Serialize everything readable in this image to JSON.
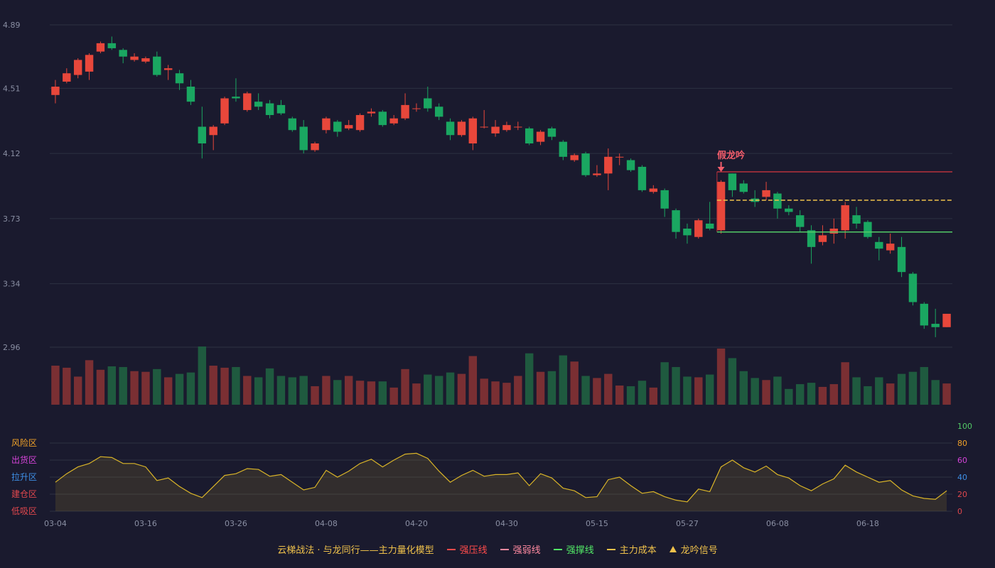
{
  "colors": {
    "background": "#1a1a2e",
    "grid": "#2d3142",
    "axis_text": "#8a8fa3",
    "up": "#e8473b",
    "down": "#1aa761",
    "up_vol": "#7a2f33",
    "down_vol": "#1f5a3f",
    "resistance": "#b8313c",
    "support": "#52c966",
    "cost": "#f0c24b",
    "weak": "#ff8aa0",
    "oscillator": "#d9b428",
    "signal": "#f25d6b"
  },
  "chart_data": {
    "type": "candlestick",
    "x_tick_labels": [
      "03-04",
      "03-16",
      "03-26",
      "04-08",
      "04-20",
      "04-30",
      "05-15",
      "05-27",
      "06-08",
      "06-18"
    ],
    "x_tick_index": [
      0,
      8,
      16,
      24,
      32,
      40,
      48,
      56,
      64,
      72
    ],
    "price_axis": {
      "ylim": [
        2.96,
        4.89
      ],
      "ticks": [
        "4.89",
        "4.51",
        "4.12",
        "3.73",
        "3.34",
        "2.96"
      ]
    },
    "candles": [
      [
        4.47,
        4.52,
        4.56,
        4.42
      ],
      [
        4.55,
        4.6,
        4.63,
        4.54
      ],
      [
        4.59,
        4.68,
        4.69,
        4.57
      ],
      [
        4.61,
        4.71,
        4.72,
        4.56
      ],
      [
        4.73,
        4.78,
        4.79,
        4.72
      ],
      [
        4.78,
        4.75,
        4.82,
        4.74
      ],
      [
        4.74,
        4.7,
        4.75,
        4.66
      ],
      [
        4.68,
        4.7,
        4.72,
        4.67
      ],
      [
        4.67,
        4.69,
        4.7,
        4.66
      ],
      [
        4.7,
        4.59,
        4.73,
        4.58
      ],
      [
        4.62,
        4.63,
        4.65,
        4.56
      ],
      [
        4.6,
        4.54,
        4.62,
        4.5
      ],
      [
        4.52,
        4.43,
        4.56,
        4.41
      ],
      [
        4.28,
        4.18,
        4.4,
        4.09
      ],
      [
        4.23,
        4.28,
        4.29,
        4.14
      ],
      [
        4.3,
        4.45,
        4.46,
        4.29
      ],
      [
        4.46,
        4.45,
        4.57,
        4.43
      ],
      [
        4.38,
        4.48,
        4.49,
        4.37
      ],
      [
        4.43,
        4.4,
        4.48,
        4.38
      ],
      [
        4.42,
        4.35,
        4.44,
        4.33
      ],
      [
        4.41,
        4.36,
        4.44,
        4.35
      ],
      [
        4.33,
        4.26,
        4.34,
        4.25
      ],
      [
        4.28,
        4.14,
        4.32,
        4.12
      ],
      [
        4.14,
        4.18,
        4.19,
        4.13
      ],
      [
        4.26,
        4.33,
        4.34,
        4.24
      ],
      [
        4.31,
        4.25,
        4.32,
        4.22
      ],
      [
        4.27,
        4.29,
        4.32,
        4.26
      ],
      [
        4.26,
        4.35,
        4.36,
        4.25
      ],
      [
        4.36,
        4.37,
        4.39,
        4.34
      ],
      [
        4.37,
        4.29,
        4.38,
        4.28
      ],
      [
        4.3,
        4.33,
        4.35,
        4.29
      ],
      [
        4.33,
        4.41,
        4.48,
        4.32
      ],
      [
        4.39,
        4.39,
        4.42,
        4.37
      ],
      [
        4.45,
        4.39,
        4.52,
        4.37
      ],
      [
        4.4,
        4.34,
        4.42,
        4.32
      ],
      [
        4.31,
        4.23,
        4.33,
        4.2
      ],
      [
        4.23,
        4.31,
        4.32,
        4.22
      ],
      [
        4.18,
        4.33,
        4.34,
        4.14
      ],
      [
        4.28,
        4.28,
        4.38,
        4.27
      ],
      [
        4.24,
        4.28,
        4.32,
        4.22
      ],
      [
        4.26,
        4.29,
        4.31,
        4.25
      ],
      [
        4.28,
        4.28,
        4.31,
        4.26
      ],
      [
        4.27,
        4.18,
        4.28,
        4.17
      ],
      [
        4.19,
        4.25,
        4.26,
        4.17
      ],
      [
        4.27,
        4.22,
        4.28,
        4.2
      ],
      [
        4.19,
        4.1,
        4.2,
        4.08
      ],
      [
        4.08,
        4.11,
        4.12,
        4.07
      ],
      [
        4.12,
        3.99,
        4.13,
        3.98
      ],
      [
        3.99,
        4.0,
        4.05,
        3.98
      ],
      [
        4.0,
        4.1,
        4.15,
        3.9
      ],
      [
        4.1,
        4.1,
        4.12,
        4.05
      ],
      [
        4.08,
        4.02,
        4.09,
        4.01
      ],
      [
        4.04,
        3.9,
        4.05,
        3.89
      ],
      [
        3.89,
        3.91,
        3.93,
        3.88
      ],
      [
        3.9,
        3.79,
        3.91,
        3.74
      ],
      [
        3.78,
        3.65,
        3.79,
        3.61
      ],
      [
        3.67,
        3.63,
        3.7,
        3.58
      ],
      [
        3.62,
        3.72,
        3.73,
        3.61
      ],
      [
        3.7,
        3.67,
        3.83,
        3.66
      ],
      [
        3.66,
        3.95,
        3.96,
        3.64
      ],
      [
        4.0,
        3.9,
        4.0,
        3.86
      ],
      [
        3.94,
        3.89,
        3.96,
        3.88
      ],
      [
        3.85,
        3.83,
        3.9,
        3.8
      ],
      [
        3.86,
        3.9,
        3.95,
        3.84
      ],
      [
        3.88,
        3.79,
        3.89,
        3.73
      ],
      [
        3.79,
        3.77,
        3.81,
        3.75
      ],
      [
        3.75,
        3.68,
        3.78,
        3.65
      ],
      [
        3.66,
        3.56,
        3.69,
        3.46
      ],
      [
        3.59,
        3.63,
        3.69,
        3.57
      ],
      [
        3.64,
        3.67,
        3.73,
        3.58
      ],
      [
        3.66,
        3.81,
        3.83,
        3.61
      ],
      [
        3.75,
        3.7,
        3.8,
        3.67
      ],
      [
        3.71,
        3.62,
        3.72,
        3.61
      ],
      [
        3.59,
        3.55,
        3.62,
        3.48
      ],
      [
        3.54,
        3.58,
        3.64,
        3.52
      ],
      [
        3.56,
        3.41,
        3.62,
        3.38
      ],
      [
        3.4,
        3.23,
        3.41,
        3.21
      ],
      [
        3.22,
        3.09,
        3.23,
        3.07
      ],
      [
        3.1,
        3.08,
        3.19,
        3.02
      ],
      [
        3.08,
        3.16,
        3.16,
        3.08
      ]
    ],
    "volume": [
      57,
      54,
      41,
      65,
      51,
      56,
      55,
      49,
      48,
      52,
      40,
      45,
      47,
      85,
      57,
      54,
      55,
      42,
      40,
      53,
      42,
      40,
      42,
      27,
      42,
      36,
      42,
      35,
      34,
      34,
      25,
      52,
      31,
      44,
      42,
      47,
      45,
      71,
      38,
      34,
      32,
      42,
      75,
      48,
      49,
      72,
      63,
      42,
      39,
      45,
      28,
      27,
      35,
      25,
      62,
      55,
      41,
      40,
      44,
      82,
      68,
      49,
      39,
      36,
      41,
      23,
      30,
      32,
      26,
      30,
      62,
      40,
      27,
      40,
      31,
      45,
      48,
      55,
      36,
      31
    ],
    "oscillator": {
      "ylim": [
        0,
        100
      ],
      "ticks": [
        "100",
        "80",
        "60",
        "40",
        "20",
        "0"
      ],
      "tick_colors": [
        "#52c966",
        "#f0a128",
        "#d444d8",
        "#3e8fe6",
        "#e0474d",
        "#e0474d"
      ],
      "zones": [
        {
          "label": "风险区",
          "color": "#f0a128"
        },
        {
          "label": "出货区",
          "color": "#d444d8"
        },
        {
          "label": "拉升区",
          "color": "#3e8fe6"
        },
        {
          "label": "建仓区",
          "color": "#e0474d"
        },
        {
          "label": "低吸区",
          "color": "#e0474d"
        }
      ],
      "values": [
        34,
        44,
        52,
        56,
        64,
        63,
        56,
        56,
        52,
        36,
        39,
        29,
        21,
        16,
        29,
        42,
        44,
        50,
        49,
        41,
        43,
        34,
        25,
        28,
        48,
        40,
        47,
        56,
        61,
        52,
        60,
        67,
        68,
        62,
        47,
        34,
        42,
        48,
        41,
        43,
        43,
        45,
        30,
        44,
        39,
        27,
        24,
        16,
        17,
        37,
        40,
        30,
        21,
        23,
        17,
        13,
        11,
        26,
        23,
        52,
        60,
        51,
        46,
        53,
        43,
        39,
        30,
        24,
        32,
        38,
        54,
        46,
        40,
        34,
        36,
        25,
        18,
        15,
        14,
        24
      ]
    },
    "signal_label": "假龙吟",
    "signal_index": 59,
    "resistance_price": 4.01,
    "cost_price": 3.84,
    "support_price": 3.65
  },
  "legend": {
    "title": "云梯战法 · 与龙同行——主力量化模型",
    "items": [
      {
        "label": "强压线",
        "swatch": "line",
        "color": "#ff4b4b"
      },
      {
        "label": "强弱线",
        "swatch": "dashed",
        "color": "#ff8aa0"
      },
      {
        "label": "强撑线",
        "swatch": "line",
        "color": "#52e866"
      },
      {
        "label": "主力成本",
        "swatch": "dashed",
        "color": "#f0c24b"
      },
      {
        "label": "龙吟信号",
        "swatch": "triangle",
        "color": "#f0c24b"
      }
    ]
  }
}
